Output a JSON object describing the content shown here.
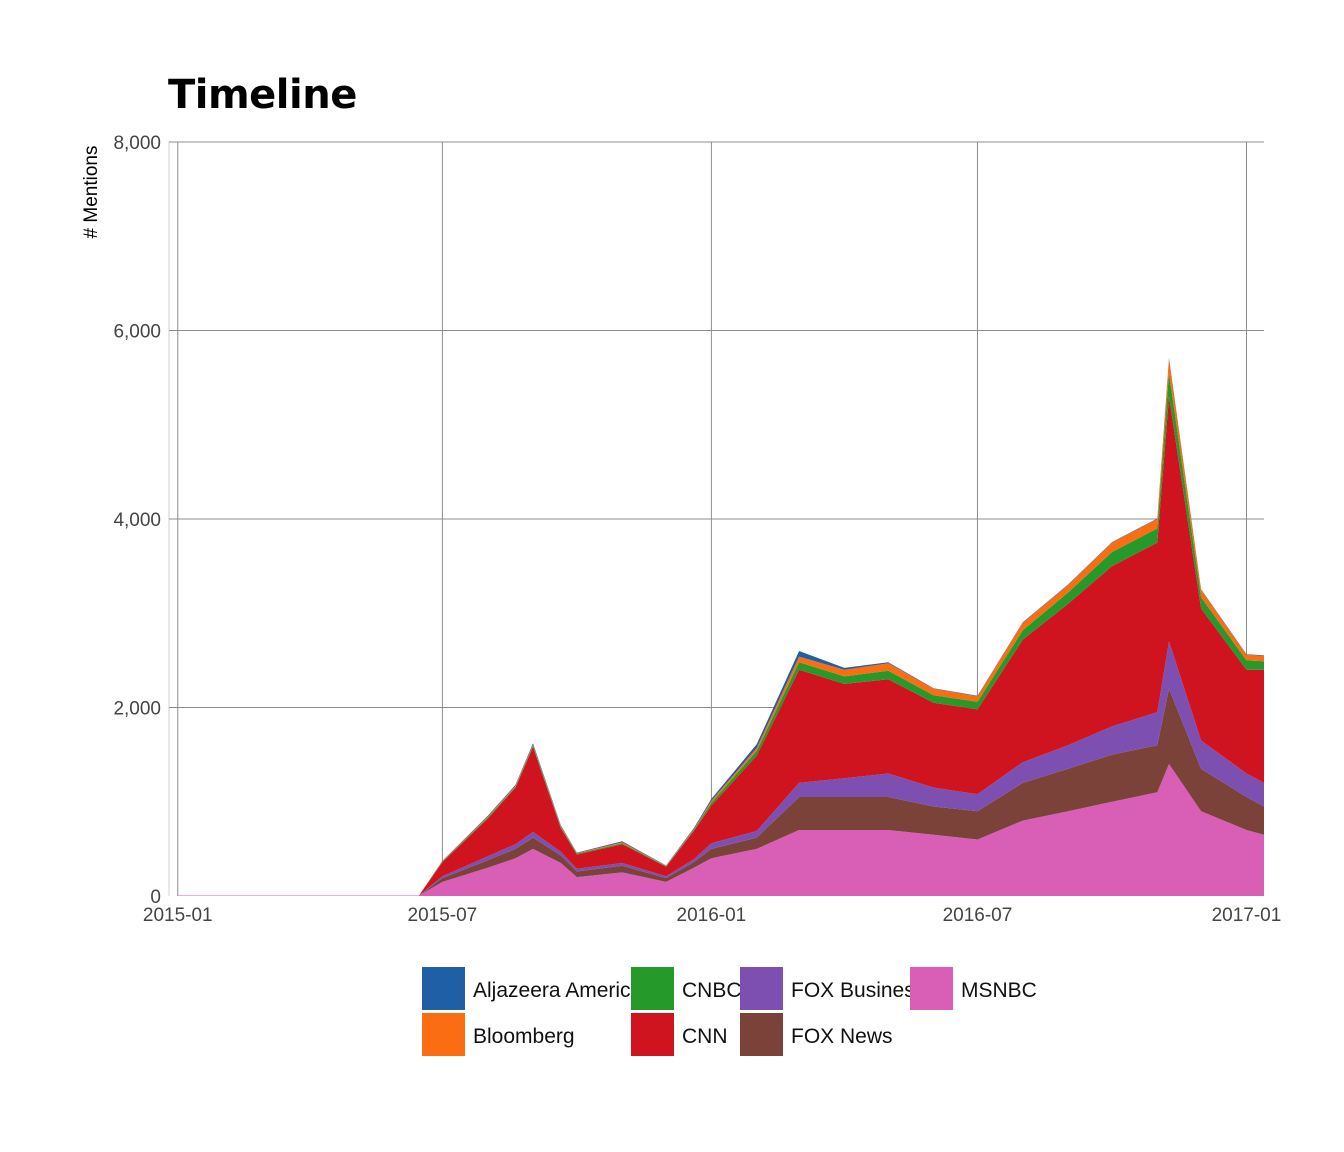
{
  "chart_data": {
    "type": "area",
    "title": "Timeline",
    "xlabel": "",
    "ylabel": "# Mentions",
    "stacked": true,
    "x_range": [
      "2014-12-26",
      "2017-01-13"
    ],
    "x_ticks": [
      "2015-01",
      "2015-07",
      "2016-01",
      "2016-07",
      "2017-01"
    ],
    "ylim": [
      0,
      8000
    ],
    "y_ticks": [
      0,
      2000,
      4000,
      6000,
      8000
    ],
    "y_tick_labels": [
      "0",
      "2,000",
      "4,000",
      "6,000",
      "8,000"
    ],
    "grid": true,
    "legend_position": "bottom",
    "colors": {
      "MSNBC": "#d95fb6",
      "FOX News": "#7a4239",
      "FOX Business": "#7d4fb0",
      "CNN": "#cf1420",
      "CNBC": "#259a2a",
      "Bloomberg": "#fb6d12",
      "Aljazeera America": "#1f5fa6"
    },
    "legend": [
      {
        "label": "Aljazeera America",
        "color": "#1f5fa6"
      },
      {
        "label": "Bloomberg",
        "color": "#fb6d12"
      },
      {
        "label": "CNBC",
        "color": "#259a2a"
      },
      {
        "label": "CNN",
        "color": "#cf1420"
      },
      {
        "label": "FOX Business",
        "color": "#7d4fb0"
      },
      {
        "label": "FOX News",
        "color": "#7a4239"
      },
      {
        "label": "MSNBC",
        "color": "#d95fb6"
      }
    ],
    "stack_order": [
      "MSNBC",
      "FOX News",
      "FOX Business",
      "CNN",
      "CNBC",
      "Bloomberg",
      "Aljazeera America"
    ],
    "x": [
      "2015-01-01",
      "2015-02-01",
      "2015-03-01",
      "2015-04-01",
      "2015-05-01",
      "2015-06-01",
      "2015-06-15",
      "2015-07-01",
      "2015-08-01",
      "2015-08-20",
      "2015-09-01",
      "2015-09-20",
      "2015-10-01",
      "2015-11-01",
      "2015-12-01",
      "2015-12-20",
      "2016-01-01",
      "2016-02-01",
      "2016-03-01",
      "2016-04-01",
      "2016-05-01",
      "2016-06-01",
      "2016-07-01",
      "2016-08-01",
      "2016-09-01",
      "2016-10-01",
      "2016-11-01",
      "2016-11-09",
      "2016-12-01",
      "2017-01-01",
      "2017-01-13"
    ],
    "series": [
      {
        "name": "MSNBC",
        "values": [
          5,
          5,
          5,
          5,
          5,
          5,
          5,
          150,
          300,
          400,
          500,
          350,
          200,
          250,
          150,
          300,
          400,
          500,
          700,
          700,
          700,
          650,
          600,
          800,
          900,
          1000,
          1100,
          1400,
          900,
          700,
          650
        ]
      },
      {
        "name": "FOX News",
        "values": [
          0,
          0,
          0,
          0,
          0,
          0,
          0,
          40,
          80,
          100,
          120,
          80,
          60,
          70,
          40,
          60,
          100,
          120,
          350,
          350,
          350,
          300,
          300,
          400,
          450,
          500,
          500,
          800,
          450,
          350,
          300
        ]
      },
      {
        "name": "FOX Business",
        "values": [
          0,
          0,
          0,
          0,
          0,
          0,
          0,
          20,
          40,
          50,
          60,
          40,
          30,
          30,
          20,
          30,
          60,
          70,
          150,
          200,
          250,
          200,
          180,
          220,
          250,
          300,
          350,
          500,
          300,
          250,
          250
        ]
      },
      {
        "name": "CNN",
        "values": [
          0,
          0,
          0,
          0,
          0,
          0,
          0,
          150,
          400,
          600,
          900,
          250,
          150,
          200,
          100,
          300,
          400,
          800,
          1200,
          1000,
          1000,
          900,
          900,
          1300,
          1500,
          1700,
          1800,
          2600,
          1400,
          1100,
          1200
        ]
      },
      {
        "name": "CNBC",
        "values": [
          0,
          0,
          0,
          0,
          0,
          0,
          0,
          5,
          10,
          10,
          15,
          10,
          10,
          10,
          5,
          10,
          30,
          50,
          80,
          80,
          90,
          80,
          80,
          100,
          120,
          150,
          150,
          250,
          120,
          100,
          90
        ]
      },
      {
        "name": "Bloomberg",
        "values": [
          0,
          0,
          0,
          0,
          0,
          0,
          0,
          5,
          10,
          10,
          10,
          10,
          5,
          10,
          5,
          10,
          20,
          30,
          60,
          70,
          80,
          70,
          60,
          80,
          80,
          100,
          100,
          150,
          80,
          60,
          60
        ]
      },
      {
        "name": "Aljazeera America",
        "values": [
          0,
          0,
          0,
          0,
          0,
          0,
          0,
          5,
          10,
          10,
          15,
          10,
          5,
          10,
          5,
          10,
          20,
          40,
          60,
          20,
          10,
          5,
          5,
          5,
          5,
          5,
          5,
          10,
          5,
          5,
          5
        ]
      }
    ]
  }
}
